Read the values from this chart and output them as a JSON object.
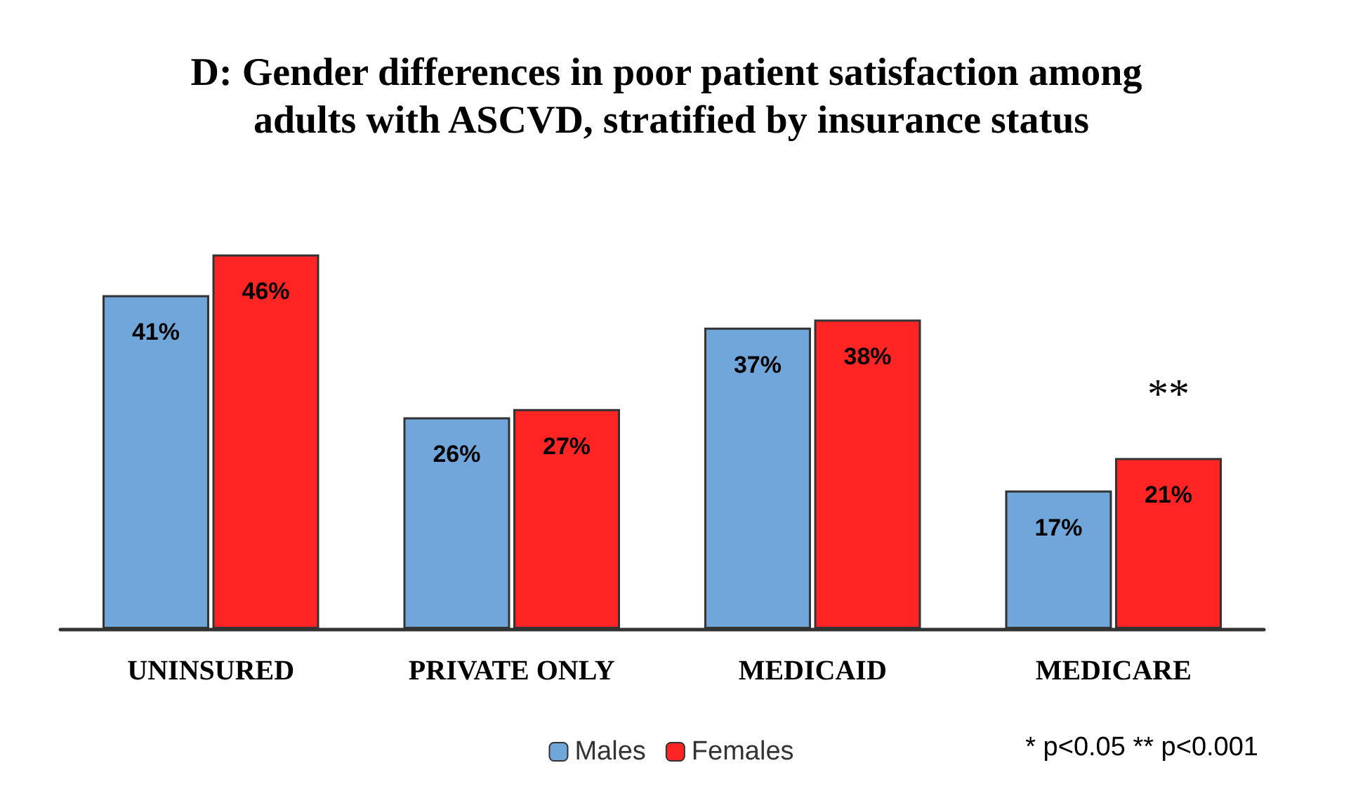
{
  "chart_data": {
    "type": "bar",
    "title": "D: Gender differences in poor patient satisfaction among adults with ASCVD, stratified by insurance status",
    "categories": [
      "UNINSURED",
      "PRIVATE ONLY",
      "MEDICAID",
      "MEDICARE"
    ],
    "series": [
      {
        "name": "Males",
        "color": "#70a6da",
        "values": [
          41,
          26,
          37,
          17
        ],
        "value_labels": [
          "41%",
          "26%",
          "37%",
          "17%"
        ]
      },
      {
        "name": "Females",
        "color": "#ff2525",
        "values": [
          46,
          27,
          38,
          21
        ],
        "value_labels": [
          "46%",
          "27%",
          "38%",
          "21%"
        ]
      }
    ],
    "legend": "bottom",
    "annotations": [
      "**",
      "* p<0.05 ** p<0.001"
    ]
  }
}
